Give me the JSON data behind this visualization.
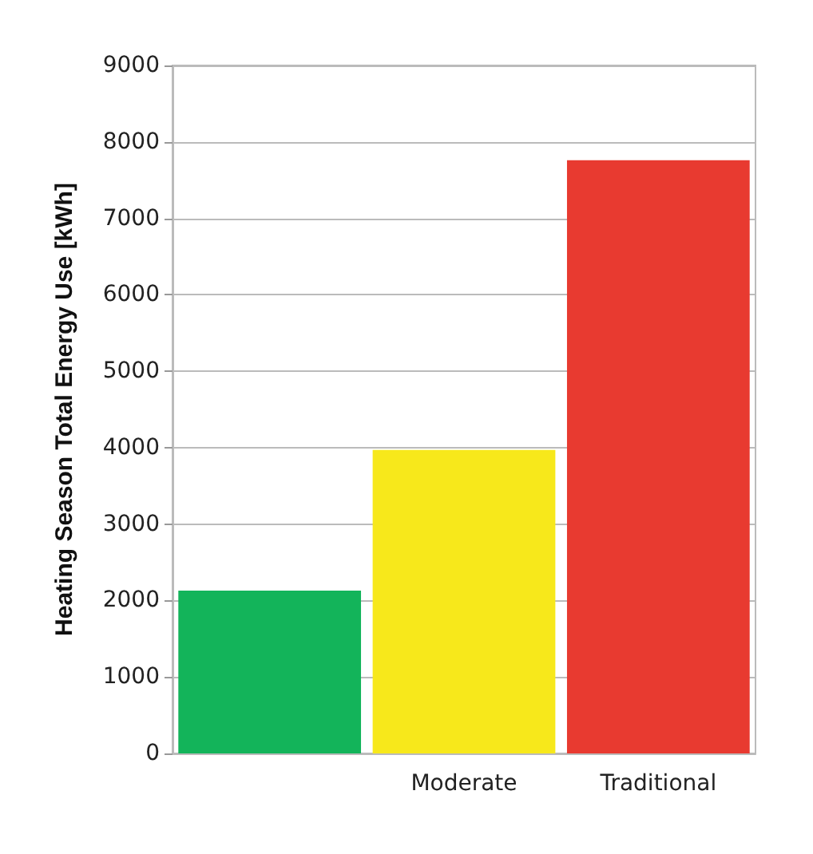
{
  "chart_data": {
    "type": "bar",
    "ylabel": "Heating Season Total Energy Use [kWh]",
    "categories": [
      null,
      "Moderate",
      "Traditional"
    ],
    "values": [
      2130,
      3970,
      7760
    ],
    "colors": [
      "#13b45a",
      "#f7e81b",
      "#e83a30"
    ],
    "ylim": [
      0,
      9000
    ],
    "yticks": [
      0,
      1000,
      2000,
      3000,
      4000,
      5000,
      6000,
      7000,
      8000,
      9000
    ],
    "grid": "y"
  }
}
